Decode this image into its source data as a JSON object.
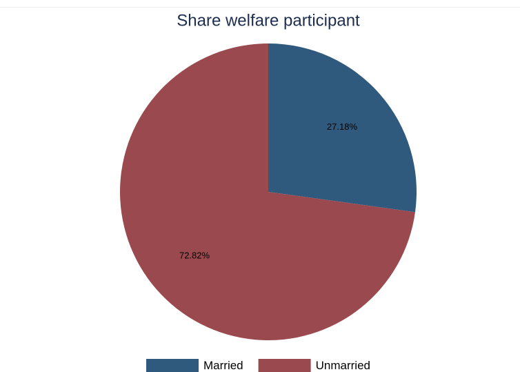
{
  "chart_data": {
    "type": "pie",
    "title": "Share welfare participant",
    "categories": [
      "Married",
      "Unmarried"
    ],
    "values": [
      27.18,
      72.82
    ],
    "value_labels": [
      "27.18%",
      "72.82%"
    ],
    "colors": [
      "#2f5a7e",
      "#9a4a4f"
    ],
    "legend": "bottom"
  }
}
